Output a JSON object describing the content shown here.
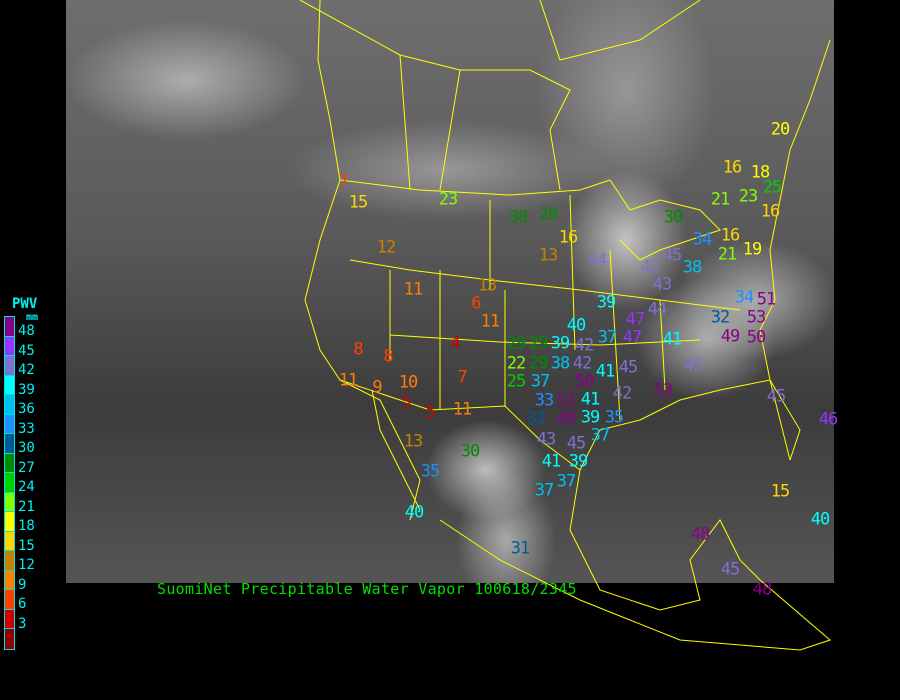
{
  "caption": "SuomiNet Precipitable Water Vapor 100618/2345",
  "legend": {
    "title": "PWV",
    "unit": "mm",
    "labels": [
      "48",
      "45",
      "42",
      "39",
      "36",
      "33",
      "30",
      "27",
      "24",
      "21",
      "18",
      "15",
      "12",
      "9",
      "6",
      "3"
    ],
    "colors": [
      "#8b008b",
      "#9933ff",
      "#8070d0",
      "#00ffff",
      "#00c0f0",
      "#1e90ff",
      "#005a96",
      "#008c00",
      "#00d000",
      "#80ff00",
      "#ffff00",
      "#ffd700",
      "#c88000",
      "#ff8000",
      "#ff4000",
      "#d00000",
      "#900000"
    ]
  },
  "border_color": "#ffff00",
  "stations": [
    "15",
    "7",
    "23",
    "30",
    "28",
    "12",
    "16",
    "13",
    "44",
    "42",
    "45",
    "38",
    "43",
    "34",
    "16",
    "21",
    "19",
    "30",
    "16",
    "18",
    "21",
    "23",
    "25",
    "16",
    "20",
    "11",
    "13",
    "6",
    "11",
    "8",
    "8",
    "4",
    "11",
    "9",
    "10",
    "7",
    "5",
    "5",
    "11",
    "29",
    "29",
    "22",
    "29",
    "25",
    "38",
    "37",
    "39",
    "40",
    "42",
    "42",
    "50",
    "41",
    "45",
    "39",
    "47",
    "47",
    "44",
    "37",
    "41",
    "45",
    "53",
    "42",
    "33",
    "32",
    "51",
    "48",
    "41",
    "39",
    "35",
    "37",
    "43",
    "45",
    "39",
    "41",
    "37",
    "37",
    "34",
    "51",
    "53",
    "32",
    "49",
    "50",
    "45",
    "13",
    "30",
    "35",
    "40",
    "31",
    "48",
    "40",
    "45",
    "48",
    "46",
    "15"
  ]
}
